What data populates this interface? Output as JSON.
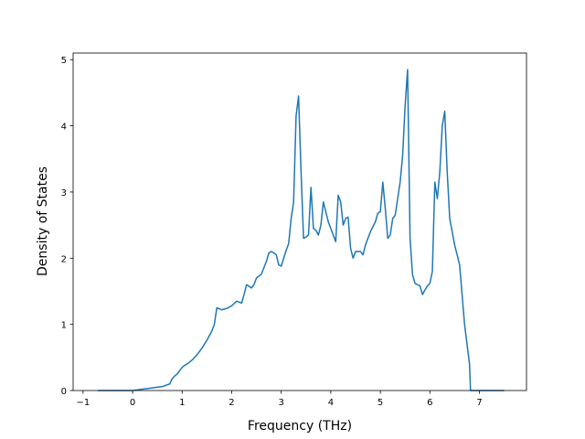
{
  "chart_data": {
    "type": "line",
    "title": "",
    "xlabel": "Frequency (THz)",
    "ylabel": "Density of States",
    "xlim": [
      -1.2,
      7.95
    ],
    "ylim": [
      0,
      5.1
    ],
    "xticks": [
      -1,
      0,
      1,
      2,
      3,
      4,
      5,
      6,
      7
    ],
    "yticks": [
      0,
      1,
      2,
      3,
      4,
      5
    ],
    "grid": false,
    "line_color": "#1f77b4",
    "series": [
      {
        "x": [
          -0.7,
          -0.3,
          0.0,
          0.2,
          0.4,
          0.6,
          0.75,
          0.8,
          0.85,
          0.9,
          0.95,
          1.0,
          1.05,
          1.1,
          1.2,
          1.3,
          1.4,
          1.5,
          1.6,
          1.65,
          1.7,
          1.8,
          1.9,
          2.0,
          2.1,
          2.2,
          2.25,
          2.3,
          2.4,
          2.45,
          2.5,
          2.6,
          2.7,
          2.75,
          2.8,
          2.85,
          2.9,
          2.95,
          3.0,
          3.1,
          3.15,
          3.2,
          3.25,
          3.3,
          3.35,
          3.4,
          3.45,
          3.5,
          3.55,
          3.6,
          3.65,
          3.7,
          3.75,
          3.8,
          3.85,
          3.9,
          3.95,
          4.0,
          4.1,
          4.15,
          4.2,
          4.25,
          4.3,
          4.35,
          4.4,
          4.45,
          4.5,
          4.6,
          4.65,
          4.7,
          4.8,
          4.9,
          4.95,
          5.0,
          5.05,
          5.1,
          5.15,
          5.2,
          5.25,
          5.3,
          5.35,
          5.4,
          5.45,
          5.5,
          5.55,
          5.6,
          5.65,
          5.7,
          5.75,
          5.8,
          5.85,
          5.9,
          5.95,
          6.0,
          6.05,
          6.1,
          6.15,
          6.2,
          6.25,
          6.3,
          6.35,
          6.4,
          6.5,
          6.6,
          6.7,
          6.8,
          6.82,
          6.9,
          7.0,
          7.2,
          7.5
        ],
        "y": [
          0.0,
          0.0,
          0.0,
          0.02,
          0.04,
          0.06,
          0.1,
          0.18,
          0.22,
          0.25,
          0.3,
          0.35,
          0.38,
          0.4,
          0.46,
          0.54,
          0.64,
          0.76,
          0.9,
          1.0,
          1.25,
          1.22,
          1.24,
          1.28,
          1.35,
          1.32,
          1.45,
          1.6,
          1.55,
          1.6,
          1.7,
          1.76,
          1.95,
          2.08,
          2.1,
          2.08,
          2.05,
          1.9,
          1.88,
          2.12,
          2.22,
          2.6,
          2.85,
          4.15,
          4.45,
          3.3,
          2.3,
          2.32,
          2.35,
          3.07,
          2.45,
          2.42,
          2.35,
          2.5,
          2.85,
          2.7,
          2.55,
          2.45,
          2.25,
          2.95,
          2.85,
          2.5,
          2.6,
          2.62,
          2.15,
          2.0,
          2.1,
          2.1,
          2.05,
          2.2,
          2.4,
          2.55,
          2.68,
          2.7,
          3.15,
          2.75,
          2.3,
          2.35,
          2.6,
          2.65,
          2.9,
          3.15,
          3.55,
          4.3,
          4.85,
          2.3,
          1.75,
          1.62,
          1.6,
          1.58,
          1.45,
          1.52,
          1.58,
          1.62,
          1.8,
          3.15,
          2.9,
          3.3,
          4.0,
          4.22,
          3.3,
          2.6,
          2.2,
          1.9,
          1.0,
          0.4,
          0.0,
          0.0,
          0.0,
          0.0,
          0.0
        ]
      }
    ]
  }
}
